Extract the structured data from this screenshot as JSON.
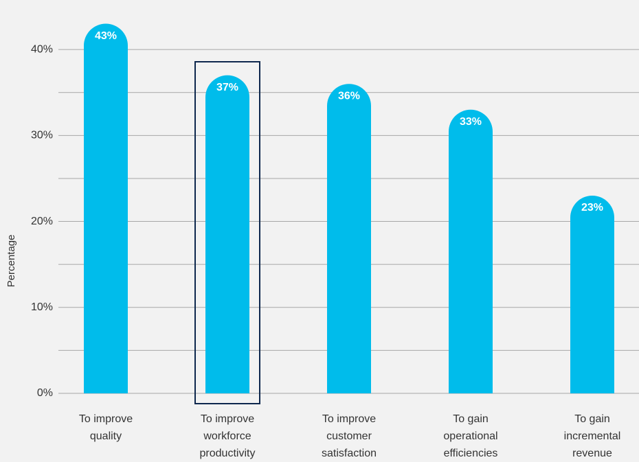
{
  "chart_data": {
    "type": "bar",
    "y_label": "Percentage",
    "categories": [
      "To improve\nquality",
      "To improve\nworkforce\nproductivity",
      "To improve\ncustomer\nsatisfaction",
      "To gain\noperational\nefficiencies",
      "To gain\nincremental\nrevenue"
    ],
    "values": [
      43,
      37,
      36,
      33,
      23
    ],
    "value_labels": [
      "43%",
      "37%",
      "36%",
      "33%",
      "23%"
    ],
    "color": "#00bceb",
    "ylim": [
      0,
      45
    ],
    "yticks": [
      {
        "value": 0,
        "label": "0%"
      },
      {
        "value": 10,
        "label": "10%"
      },
      {
        "value": 20,
        "label": "20%"
      },
      {
        "value": 30,
        "label": "30%"
      },
      {
        "value": 40,
        "label": "40%"
      }
    ],
    "minor_yticks": [
      5,
      15,
      25,
      35
    ],
    "grid": true,
    "highlight": 1
  }
}
